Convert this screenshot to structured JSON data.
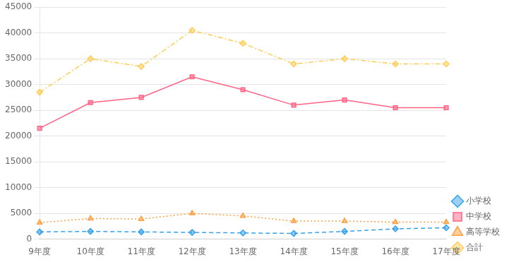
{
  "chart_data": {
    "type": "line",
    "categories": [
      "9年度",
      "10年度",
      "11年度",
      "12年度",
      "13年度",
      "14年度",
      "15年度",
      "16年度",
      "17年度"
    ],
    "series": [
      {
        "name": "小学校",
        "values": [
          1400,
          1500,
          1400,
          1300,
          1200,
          1100,
          1500,
          2000,
          2200
        ],
        "line_style": "dashed",
        "marker": "diamond"
      },
      {
        "name": "中学校",
        "values": [
          21500,
          26500,
          27500,
          31500,
          29000,
          26000,
          27000,
          25500,
          25500
        ],
        "line_style": "solid",
        "marker": "square"
      },
      {
        "name": "高等学校",
        "values": [
          3200,
          4000,
          3900,
          5000,
          4500,
          3500,
          3500,
          3300,
          3300
        ],
        "line_style": "dotted",
        "marker": "triangle"
      },
      {
        "name": "合計",
        "values": [
          28500,
          35000,
          33500,
          40500,
          38000,
          34000,
          35000,
          34000,
          34000
        ],
        "line_style": "dashdot",
        "marker": "diamond"
      }
    ],
    "ylim": [
      0,
      45000
    ],
    "yticks": [
      0,
      5000,
      10000,
      15000,
      20000,
      25000,
      30000,
      35000,
      40000,
      45000
    ],
    "grid": true,
    "legend": "lower right"
  }
}
